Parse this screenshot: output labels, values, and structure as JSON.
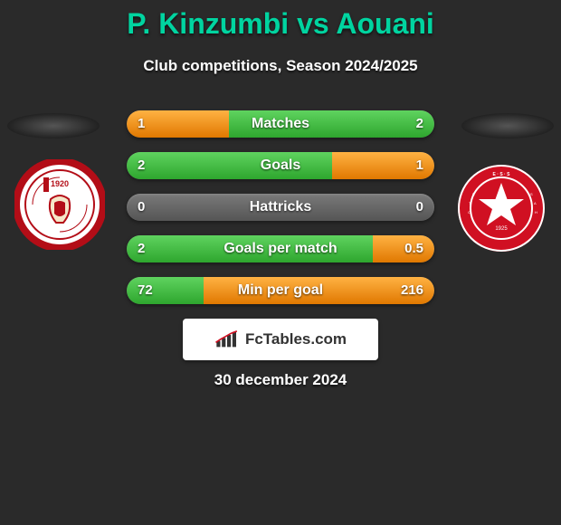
{
  "title": "P. Kinzumbi vs Aouani",
  "subtitle": "Club competitions, Season 2024/2025",
  "date": "30 december 2024",
  "brand_text": "FcTables.com",
  "colors": {
    "background": "#2a2a2a",
    "accent_title": "#00d4a0",
    "text_white": "#ffffff",
    "bar_neutral_top": "#7a7a7a",
    "bar_neutral_bottom": "#555555",
    "green_top": "#5fd35f",
    "green_bottom": "#2ea62e",
    "orange_top": "#ffb243",
    "orange_bottom": "#e07800",
    "brand_bg": "#ffffff",
    "brand_text": "#333333"
  },
  "club_left": {
    "name": "Club Africain",
    "ring_color": "#b30d17",
    "inner_bg": "#ffffff",
    "year_text": "1920"
  },
  "club_right": {
    "name": "Étoile Sportive du Sahel",
    "ring_color": "#ffffff",
    "inner_bg": "#d01022",
    "star_color": "#ffffff"
  },
  "stats": [
    {
      "label": "Matches",
      "left_value": "1",
      "right_value": "2",
      "left_pct": 33.3,
      "right_pct": 66.7,
      "left_color": "orange",
      "right_color": "green"
    },
    {
      "label": "Goals",
      "left_value": "2",
      "right_value": "1",
      "left_pct": 66.7,
      "right_pct": 33.3,
      "left_color": "green",
      "right_color": "orange"
    },
    {
      "label": "Hattricks",
      "left_value": "0",
      "right_value": "0",
      "left_pct": 0,
      "right_pct": 0,
      "left_color": "green",
      "right_color": "green"
    },
    {
      "label": "Goals per match",
      "left_value": "2",
      "right_value": "0.5",
      "left_pct": 80,
      "right_pct": 20,
      "left_color": "green",
      "right_color": "orange"
    },
    {
      "label": "Min per goal",
      "left_value": "72",
      "right_value": "216",
      "left_pct": 25,
      "right_pct": 75,
      "left_color": "green",
      "right_color": "orange"
    }
  ]
}
